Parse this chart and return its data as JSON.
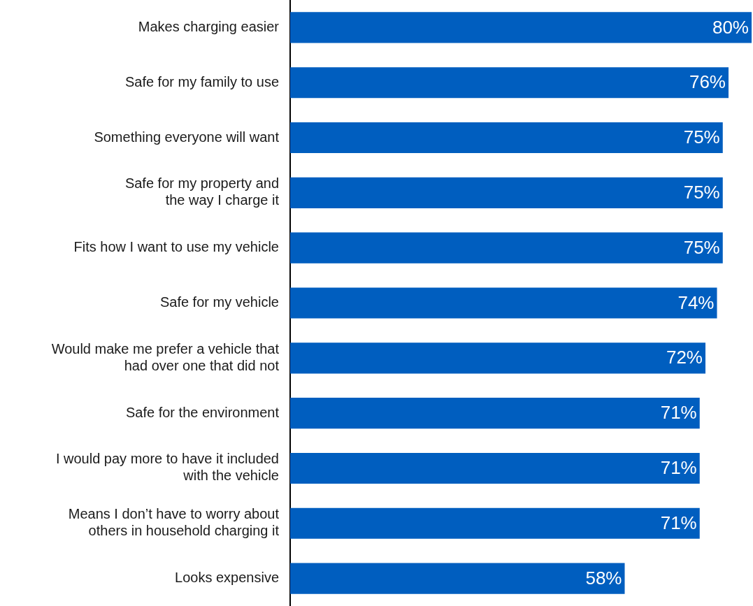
{
  "chart_data": {
    "type": "bar",
    "orientation": "horizontal",
    "tick_labels": "y",
    "data_labels": true,
    "color": "#005ebf",
    "categories": [
      "Makes charging easier",
      "Safe for my family to use",
      "Something everyone will want",
      "Safe for my property and\nthe way I charge it",
      "Fits how I want to use my vehicle",
      "Safe for my vehicle",
      "Would make me prefer a vehicle that\nhad over one that did not",
      "Safe for the environment",
      "I would pay more to have it included\nwith the vehicle",
      "Means I don’t have to worry about\nothers in household charging it",
      "Looks expensive"
    ],
    "values": [
      80,
      76,
      75,
      75,
      75,
      74,
      72,
      71,
      71,
      71,
      58
    ],
    "value_labels": [
      "80%",
      "76%",
      "75%",
      "75%",
      "75%",
      "74%",
      "72%",
      "71%",
      "71%",
      "71%",
      "58%"
    ]
  }
}
